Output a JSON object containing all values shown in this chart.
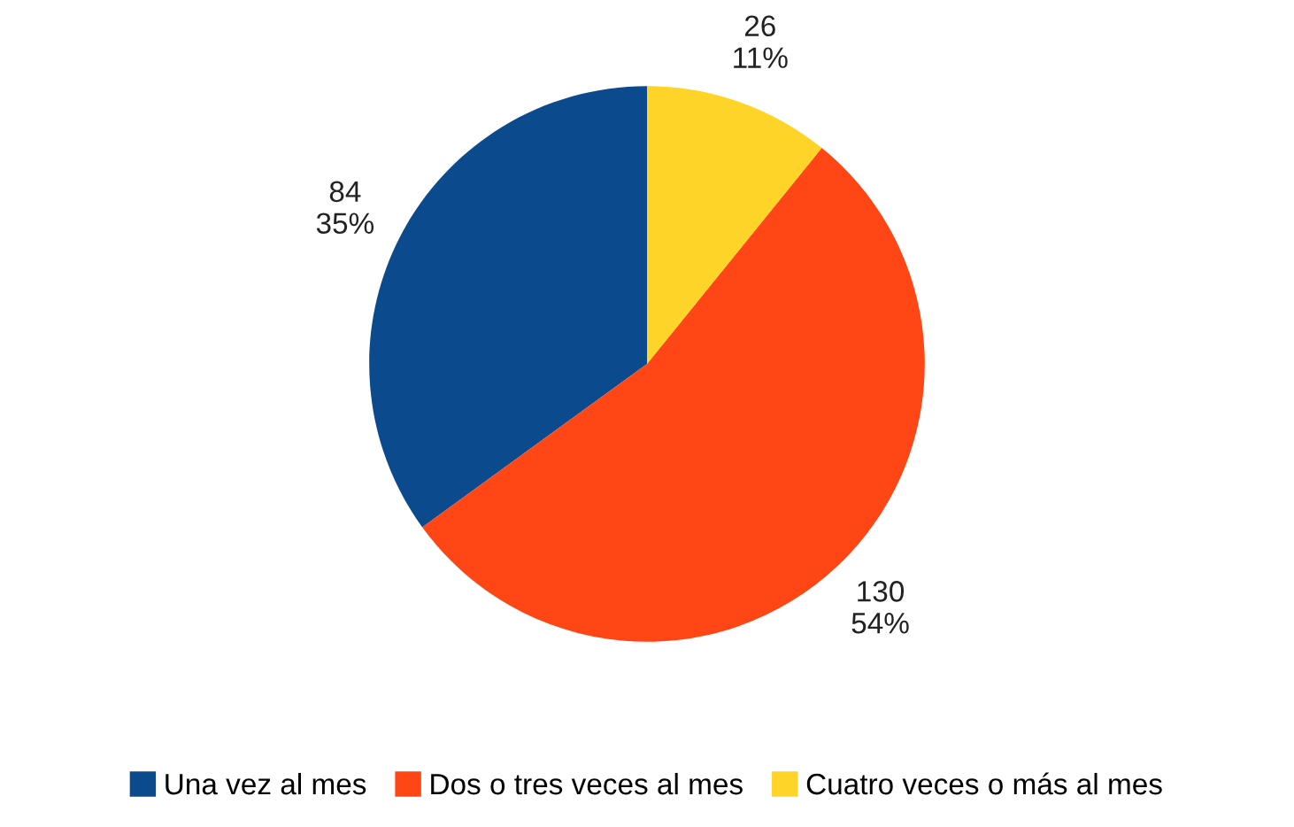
{
  "chart_data": {
    "type": "pie",
    "categories": [
      "Una vez al mes",
      "Dos o tres veces al mes",
      "Cuatro veces o más al mes"
    ],
    "values": [
      84,
      130,
      26
    ],
    "value_labels": [
      "84\n35%",
      "130\n54%",
      "26\n11%"
    ],
    "colors": [
      "#0b4a8c",
      "#ff4614",
      "#ffd428"
    ],
    "legend": "bottom"
  }
}
